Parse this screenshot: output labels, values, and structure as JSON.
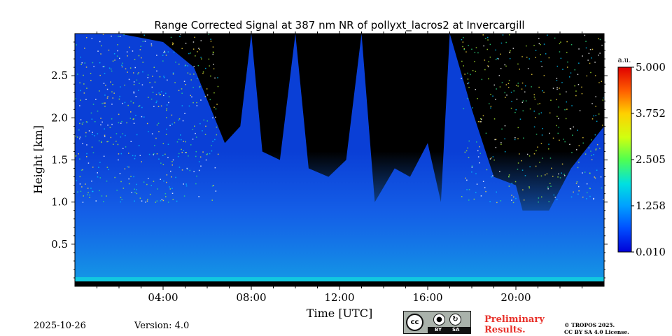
{
  "chart_data": {
    "type": "heatmap",
    "title": "Range Corrected Signal at 387 nm NR of pollyxt_lacros2 at Invercargill",
    "xlabel": "Time [UTC]",
    "ylabel": "Height [km]",
    "xlim_hours": [
      0,
      24
    ],
    "ylim_km": [
      0,
      3.0
    ],
    "x_ticks": [
      {
        "hour": 4,
        "label": "04:00"
      },
      {
        "hour": 8,
        "label": "08:00"
      },
      {
        "hour": 12,
        "label": "12:00"
      },
      {
        "hour": 16,
        "label": "16:00"
      },
      {
        "hour": 20,
        "label": "20:00"
      }
    ],
    "y_ticks": [
      {
        "km": 0.5,
        "label": "0.5"
      },
      {
        "km": 1.0,
        "label": "1.0"
      },
      {
        "km": 1.5,
        "label": "1.5"
      },
      {
        "km": 2.0,
        "label": "2.0"
      },
      {
        "km": 2.5,
        "label": "2.5"
      }
    ],
    "colorbar": {
      "unit": "a.u.",
      "min": 0.01,
      "max": 5.0,
      "ticks": [
        {
          "value": 5.0,
          "label": "5.000"
        },
        {
          "value": 3.752,
          "label": "3.752"
        },
        {
          "value": 2.505,
          "label": "2.505"
        },
        {
          "value": 1.258,
          "label": "1.258"
        },
        {
          "value": 0.01,
          "label": "0.010"
        }
      ]
    },
    "signal_top_km": [
      {
        "hour": 0.0,
        "km": 3.0
      },
      {
        "hour": 2.0,
        "km": 3.0
      },
      {
        "hour": 4.0,
        "km": 2.9
      },
      {
        "hour": 5.4,
        "km": 2.6
      },
      {
        "hour": 6.8,
        "km": 1.7
      },
      {
        "hour": 7.5,
        "km": 1.9
      },
      {
        "hour": 8.0,
        "km": 3.0
      },
      {
        "hour": 8.5,
        "km": 1.6
      },
      {
        "hour": 9.3,
        "km": 1.5
      },
      {
        "hour": 10.0,
        "km": 3.0
      },
      {
        "hour": 10.6,
        "km": 1.4
      },
      {
        "hour": 11.5,
        "km": 1.3
      },
      {
        "hour": 12.3,
        "km": 1.5
      },
      {
        "hour": 13.0,
        "km": 3.0
      },
      {
        "hour": 13.6,
        "km": 1.0
      },
      {
        "hour": 14.5,
        "km": 1.4
      },
      {
        "hour": 15.2,
        "km": 1.3
      },
      {
        "hour": 16.0,
        "km": 1.7
      },
      {
        "hour": 16.6,
        "km": 1.0
      },
      {
        "hour": 17.0,
        "km": 3.0
      },
      {
        "hour": 18.0,
        "km": 2.1
      },
      {
        "hour": 19.0,
        "km": 1.3
      },
      {
        "hour": 20.0,
        "km": 1.2
      },
      {
        "hour": 20.3,
        "km": 0.9
      },
      {
        "hour": 21.5,
        "km": 0.9
      },
      {
        "hour": 22.5,
        "km": 1.4
      },
      {
        "hour": 24.0,
        "km": 1.9
      }
    ]
  },
  "footer": {
    "date": "2025-10-26",
    "version": "Version: 4.0",
    "license_badge": {
      "cc": "cc",
      "by": "BY",
      "sa": "SA"
    },
    "preliminary_line1": "Preliminary",
    "preliminary_line2": "Results.",
    "copyright_line1": "© TROPOS 2025.",
    "copyright_line2": "CC BY SA 4.0 License."
  }
}
